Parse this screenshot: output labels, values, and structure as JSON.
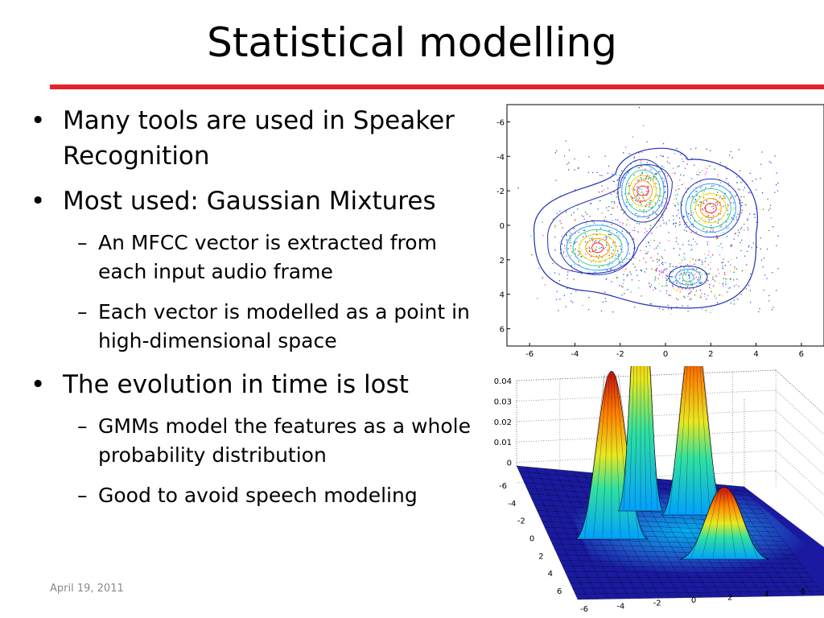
{
  "slide": {
    "title": "Statistical modelling",
    "bullets": [
      {
        "level": 1,
        "text": "Many tools  are used in Speaker Recognition"
      },
      {
        "level": 1,
        "text": "Most used: Gaussian Mixtures"
      },
      {
        "level": 2,
        "text": "An MFCC vector is extracted from each input audio frame"
      },
      {
        "level": 2,
        "text": "Each vector is modelled as a point in high-dimensional space"
      },
      {
        "level": 1,
        "text": "The evolution in time is lost"
      },
      {
        "level": 2,
        "text": "GMMs model the features as a whole probability distribution"
      },
      {
        "level": 2,
        "text": "Good to avoid speech modeling"
      }
    ],
    "bullet_mark": "•",
    "sub_mark": "–",
    "footer_date": "April 19, 2011"
  },
  "figures": {
    "contour_plot": {
      "y_ticks": [
        "-6",
        "-4",
        "-2",
        "0",
        "2",
        "4",
        "6"
      ],
      "x_ticks": [
        "-6",
        "-4",
        "-2",
        "0",
        "2",
        "4",
        "6"
      ]
    },
    "surface_plot": {
      "z_ticks": [
        "0.04",
        "0.03",
        "0.02",
        "0.01",
        "0"
      ],
      "y_ticks": [
        "-6",
        "-4",
        "-2",
        "0",
        "2",
        "4",
        "6"
      ],
      "x_ticks": [
        "-6",
        "-4",
        "-2",
        "0",
        "2",
        "4",
        "6"
      ]
    }
  },
  "chart_data": [
    {
      "type": "scatter",
      "subtype": "contour-with-scatter",
      "xlim": [
        -7,
        7
      ],
      "ylim": [
        -7,
        7
      ],
      "y_reversed": true,
      "components": [
        {
          "mean": [
            -3,
            1.3
          ],
          "peak": 0.025
        },
        {
          "mean": [
            -1,
            -2
          ],
          "peak": 0.04
        },
        {
          "mean": [
            2,
            -1
          ],
          "peak": 0.028
        },
        {
          "mean": [
            1,
            3
          ],
          "peak": 0.01
        }
      ]
    },
    {
      "type": "heatmap",
      "subtype": "3d-surface",
      "zlim": [
        0,
        0.04
      ],
      "xlim": [
        -6,
        6
      ],
      "ylim": [
        -6,
        6
      ]
    }
  ],
  "colors": {
    "rule": "#e3242b",
    "contour_outer": "#1f2fb8",
    "surface_low": "#1a1aa0",
    "surface_high": "#d01010"
  }
}
